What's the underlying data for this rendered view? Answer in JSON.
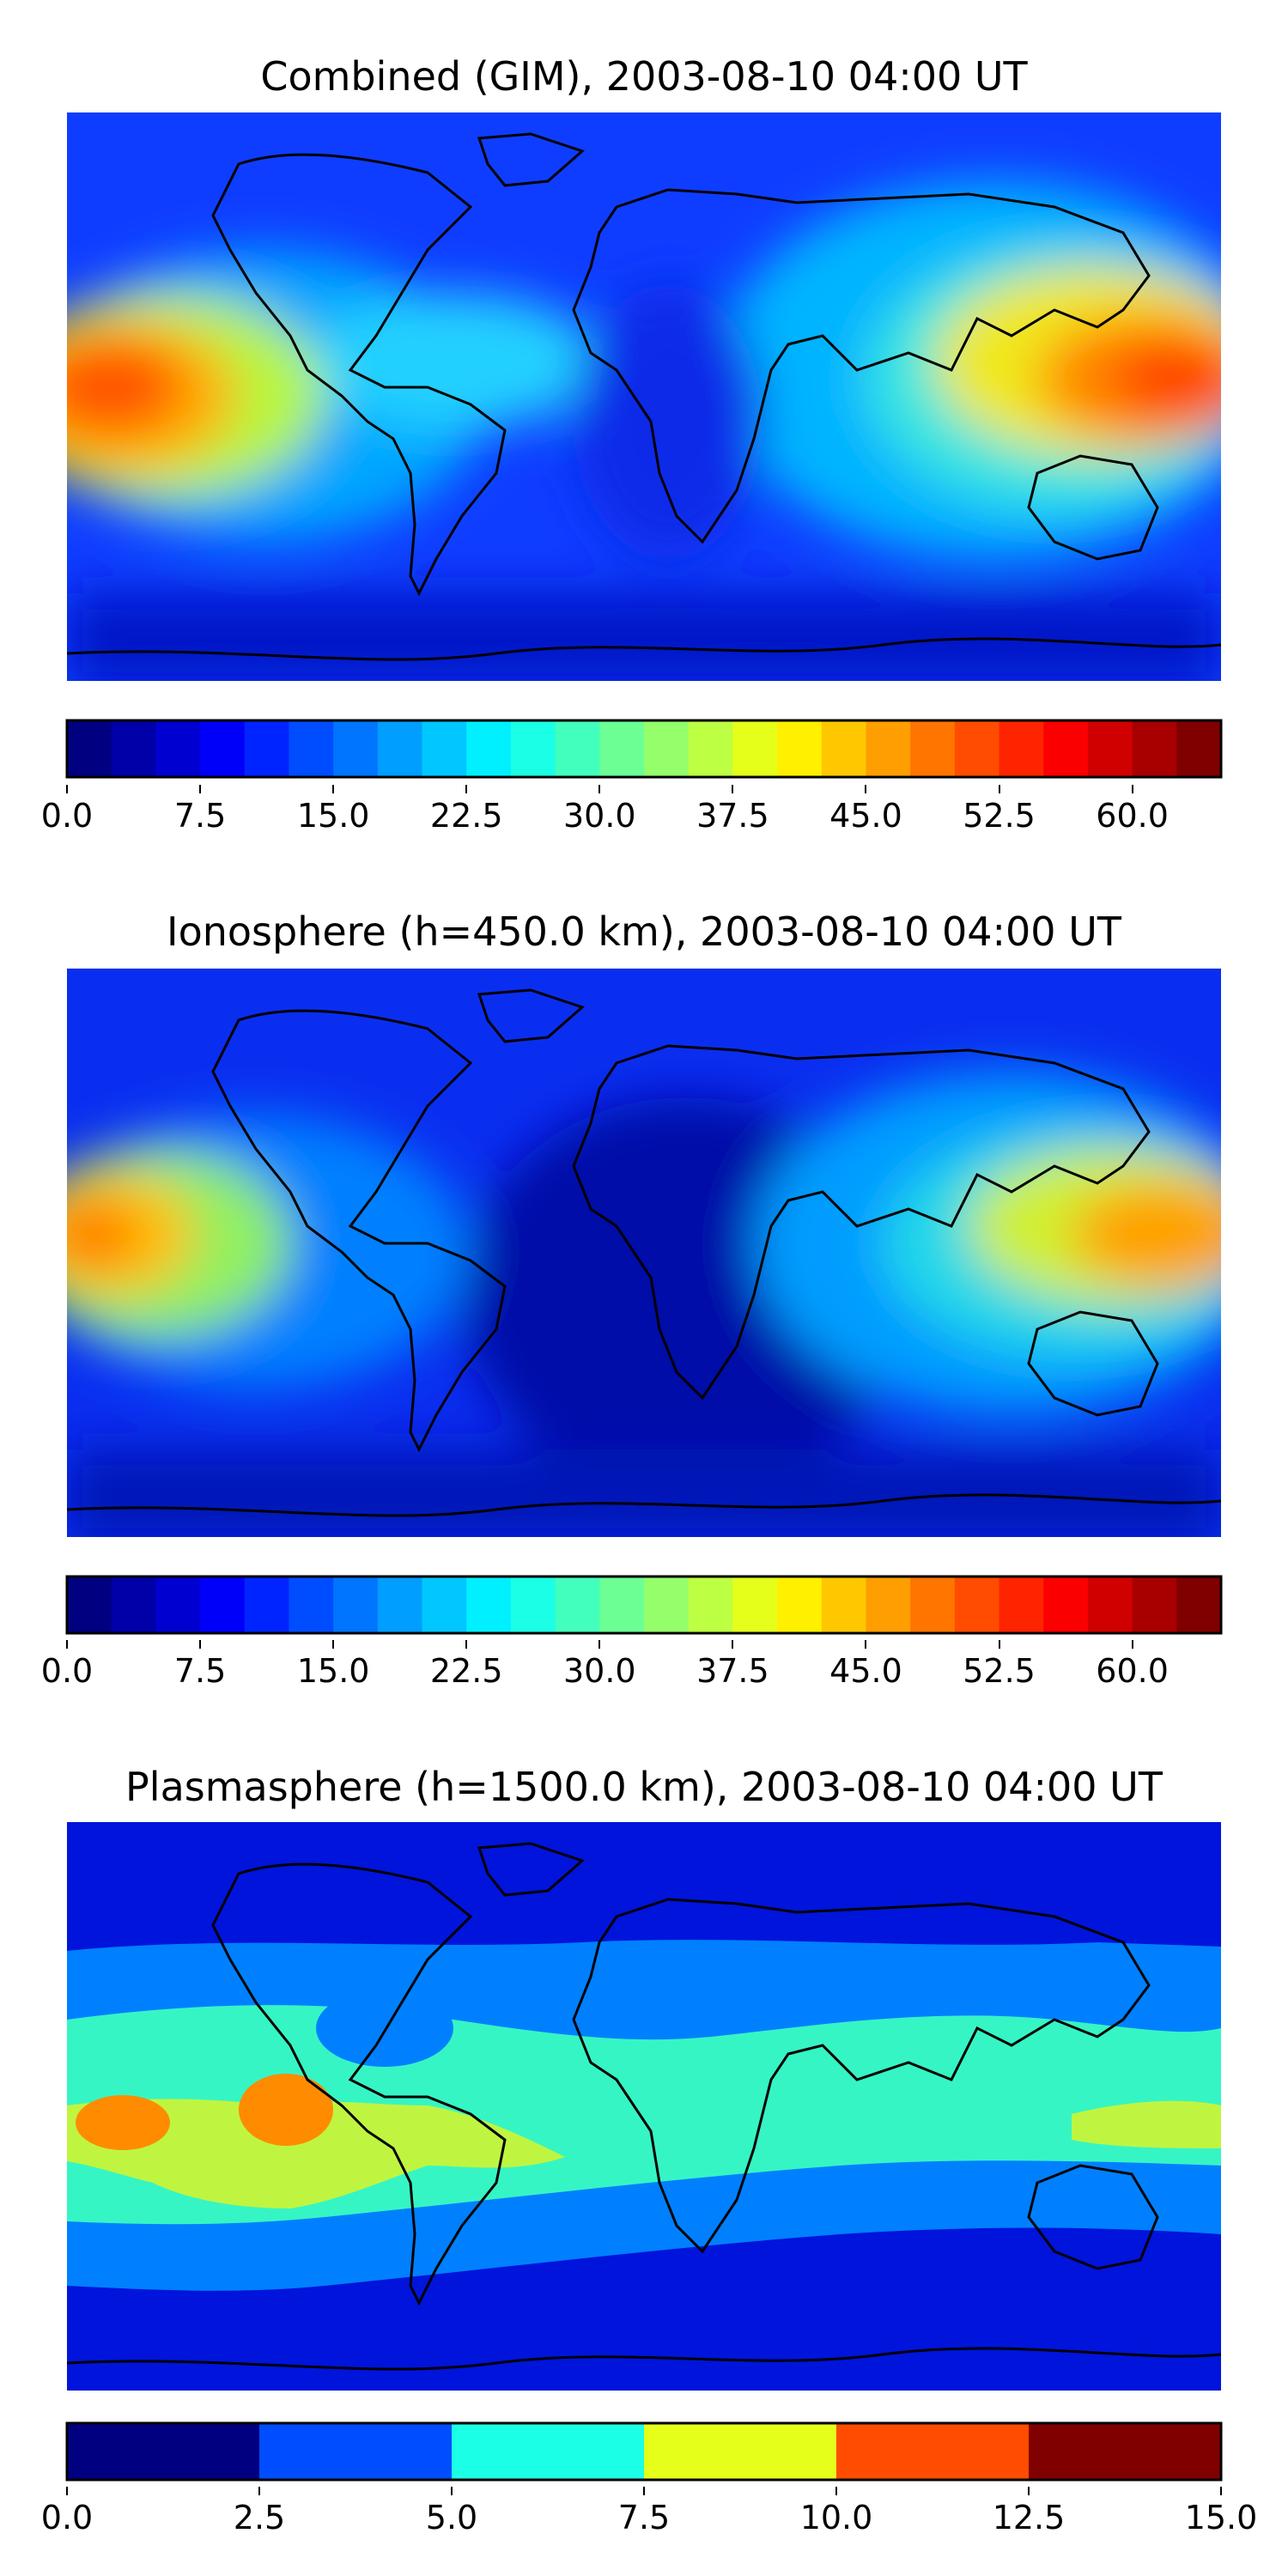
{
  "chart_data": [
    {
      "type": "heatmap",
      "title": "Combined (GIM), 2003-08-10 04:00 UT",
      "colorbar": {
        "min": 0,
        "max": 65,
        "step": 2.5,
        "ticks": [
          "0.0",
          "7.5",
          "15.0",
          "22.5",
          "30.0",
          "37.5",
          "45.0",
          "52.5",
          "60.0"
        ],
        "tick_values": [
          0,
          7.5,
          15,
          22.5,
          30,
          37.5,
          45,
          52.5,
          60
        ],
        "colormap": "jet"
      },
      "features": [
        {
          "name": "pacific-maximum",
          "lon": -180,
          "lat": 0,
          "value": 57
        },
        {
          "name": "asia-maximum",
          "lon": 175,
          "lat": 0,
          "value": 55
        }
      ]
    },
    {
      "type": "heatmap",
      "title": "Ionosphere  (h=450.0 km), 2003-08-10 04:00 UT",
      "colorbar": {
        "min": 0,
        "max": 65,
        "step": 2.5,
        "ticks": [
          "0.0",
          "7.5",
          "15.0",
          "22.5",
          "30.0",
          "37.5",
          "45.0",
          "52.5",
          "60.0"
        ],
        "tick_values": [
          0,
          7.5,
          15,
          22.5,
          30,
          37.5,
          45,
          52.5,
          60
        ],
        "colormap": "jet"
      },
      "features": [
        {
          "name": "pacific-maximum",
          "lon": -180,
          "lat": 2,
          "value": 48
        },
        {
          "name": "asia-maximum",
          "lon": 175,
          "lat": 2,
          "value": 47
        }
      ]
    },
    {
      "type": "heatmap",
      "title": "Plasmasphere (h=1500.0 km), 2003-08-10 04:00 UT",
      "colorbar": {
        "min": 0,
        "max": 15,
        "step": 2.5,
        "ticks": [
          "0.0",
          "2.5",
          "5.0",
          "7.5",
          "10.0",
          "12.5",
          "15.0"
        ],
        "tick_values": [
          0,
          2.5,
          5,
          7.5,
          10,
          12.5,
          15
        ],
        "colormap": "jet"
      },
      "features": [
        {
          "name": "west-pacific-maximum",
          "lon": -165,
          "lat": 3,
          "value": 11
        },
        {
          "name": "east-pacific-maximum",
          "lon": -120,
          "lat": 10,
          "value": 11
        }
      ]
    }
  ]
}
